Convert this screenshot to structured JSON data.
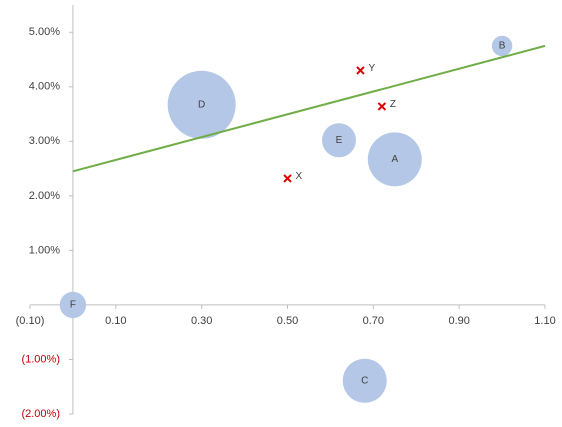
{
  "chart_data": {
    "type": "bubble",
    "xlim": [
      -0.1,
      1.1
    ],
    "ylim": [
      -2,
      5.5
    ],
    "xticks": [
      {
        "value": -0.1,
        "label": "(0.10)"
      },
      {
        "value": 0.1,
        "label": "0.10"
      },
      {
        "value": 0.3,
        "label": "0.30"
      },
      {
        "value": 0.5,
        "label": "0.50"
      },
      {
        "value": 0.7,
        "label": "0.70"
      },
      {
        "value": 0.9,
        "label": "0.90"
      },
      {
        "value": 1.1,
        "label": "1.10"
      }
    ],
    "yticks": [
      {
        "value": -2,
        "label": "(2.00%)"
      },
      {
        "value": -1,
        "label": "(1.00%)"
      },
      {
        "value": 1,
        "label": "1.00%"
      },
      {
        "value": 2,
        "label": "2.00%"
      },
      {
        "value": 3,
        "label": "3.00%"
      },
      {
        "value": 4,
        "label": "4.00%"
      },
      {
        "value": 5,
        "label": "5.00%"
      }
    ],
    "negative_tick_color": "#c00000",
    "grid": false,
    "series": [
      {
        "type": "bubble",
        "color": "#b4c7e7",
        "labels": [
          "A",
          "B",
          "C",
          "D",
          "E",
          "F"
        ],
        "x": [
          0.75,
          1.0,
          0.68,
          0.3,
          0.62,
          0.0
        ],
        "values": [
          2.67,
          4.75,
          -1.39,
          3.67,
          3.02,
          0.0
        ],
        "sizes": [
          63,
          9,
          42,
          100,
          25,
          15
        ]
      },
      {
        "type": "cross",
        "color": "#e00000",
        "labels": [
          "X",
          "Y",
          "Z"
        ],
        "x": [
          0.5,
          0.67,
          0.72
        ],
        "values": [
          2.32,
          4.3,
          3.64
        ]
      },
      {
        "type": "line",
        "color": "#70ad47",
        "x": [
          0.0,
          1.1
        ],
        "values": [
          2.45,
          4.75
        ]
      }
    ]
  }
}
